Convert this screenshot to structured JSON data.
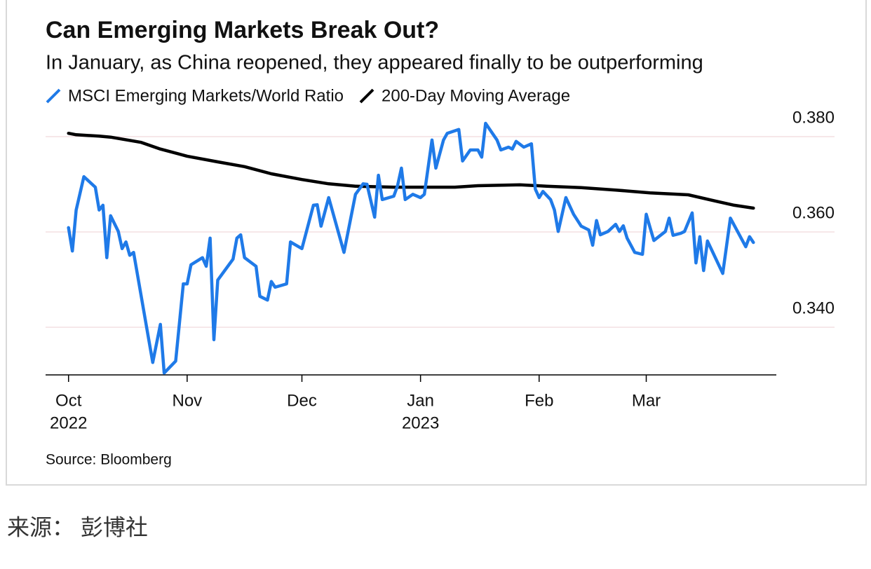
{
  "chart_data": {
    "type": "line",
    "title": "Can Emerging Markets Break Out?",
    "subtitle": "In January, as China reopened, they appeared finally to be outperforming",
    "source": "Source: Bloomberg",
    "series": [
      {
        "name": "MSCI Emerging Markets/World Ratio",
        "color": "#1f7ae8",
        "x": [
          0,
          1,
          2,
          4,
          7,
          8,
          9,
          10,
          11,
          13,
          14,
          15,
          16,
          17,
          22,
          24,
          25,
          28,
          30,
          31,
          32,
          35,
          36,
          37,
          38,
          39,
          43,
          44,
          45,
          46,
          49,
          50,
          52,
          53,
          54,
          57,
          58,
          61,
          64,
          65,
          66,
          68,
          72,
          75,
          77,
          78,
          80,
          81,
          82,
          85,
          86,
          87,
          88,
          90,
          92,
          93,
          95,
          96,
          98,
          99,
          102,
          103,
          105,
          107,
          108,
          109,
          112,
          113,
          115,
          116,
          117,
          119,
          121,
          122,
          123,
          124,
          126,
          127,
          128,
          130,
          132,
          134,
          136,
          137,
          138,
          139,
          141,
          143,
          144,
          145,
          146,
          148,
          150,
          151,
          152,
          153,
          156,
          157,
          158,
          160,
          161,
          163,
          164,
          165,
          166,
          167,
          171,
          173,
          177,
          178,
          179
        ],
        "values": [
          0.3609,
          0.356,
          0.3646,
          0.3716,
          0.3694,
          0.3646,
          0.3656,
          0.3546,
          0.3634,
          0.3601,
          0.3565,
          0.3579,
          0.3551,
          0.3557,
          0.3326,
          0.3406,
          0.3304,
          0.3329,
          0.3491,
          0.3491,
          0.3531,
          0.3546,
          0.3528,
          0.3587,
          0.3374,
          0.3499,
          0.3543,
          0.3587,
          0.3594,
          0.3546,
          0.3528,
          0.3465,
          0.3457,
          0.3496,
          0.3484,
          0.3491,
          0.3579,
          0.3565,
          0.3656,
          0.3657,
          0.3612,
          0.3672,
          0.3557,
          0.3679,
          0.3701,
          0.37,
          0.3631,
          0.3719,
          0.3668,
          0.3675,
          0.3697,
          0.3734,
          0.3668,
          0.3679,
          0.3672,
          0.3679,
          0.3793,
          0.3734,
          0.3793,
          0.3807,
          0.3815,
          0.3749,
          0.3772,
          0.3772,
          0.3757,
          0.3828,
          0.3793,
          0.3772,
          0.3778,
          0.3774,
          0.379,
          0.3778,
          0.3785,
          0.369,
          0.3672,
          0.3685,
          0.3668,
          0.3646,
          0.3601,
          0.3672,
          0.3637,
          0.3612,
          0.3604,
          0.3572,
          0.3624,
          0.3594,
          0.3601,
          0.3616,
          0.3601,
          0.3613,
          0.3587,
          0.3557,
          0.3553,
          0.3637,
          0.3609,
          0.3582,
          0.3601,
          0.3629,
          0.3593,
          0.3597,
          0.3601,
          0.364,
          0.3535,
          0.359,
          0.3519,
          0.3581,
          0.3513,
          0.3629,
          0.3569,
          0.359,
          0.3578
        ]
      },
      {
        "name": "200-Day Moving Average",
        "color": "#000000",
        "x": [
          0,
          2,
          8,
          11,
          19,
          24,
          31,
          39,
          46,
          53,
          61,
          68,
          75,
          85,
          92,
          101,
          107,
          118,
          125,
          134,
          143,
          152,
          162,
          169,
          174,
          179
        ],
        "values": [
          0.3807,
          0.3804,
          0.3801,
          0.3799,
          0.3788,
          0.3774,
          0.3759,
          0.3747,
          0.3737,
          0.3722,
          0.371,
          0.3701,
          0.3696,
          0.3694,
          0.3694,
          0.3694,
          0.3697,
          0.3699,
          0.3696,
          0.3693,
          0.3688,
          0.3682,
          0.3678,
          0.3665,
          0.3656,
          0.365
        ]
      }
    ],
    "xlim": [
      -6,
      185
    ],
    "xticks": [
      {
        "value": 0,
        "label": "Oct"
      },
      {
        "value": 31,
        "label": "Nov"
      },
      {
        "value": 61,
        "label": "Dec"
      },
      {
        "value": 92,
        "label": "Jan"
      },
      {
        "value": 123,
        "label": "Feb"
      },
      {
        "value": 151,
        "label": "Mar"
      }
    ],
    "xtick_years": [
      "2022",
      null,
      null,
      "2023",
      null,
      null
    ],
    "ylim": [
      0.33,
      0.385
    ],
    "yticks": [
      {
        "value": 0.34,
        "label": "0.340"
      },
      {
        "value": 0.36,
        "label": "0.360"
      },
      {
        "value": 0.38,
        "label": "0.380"
      }
    ],
    "grid": true
  },
  "caption": "来源： 彭博社"
}
